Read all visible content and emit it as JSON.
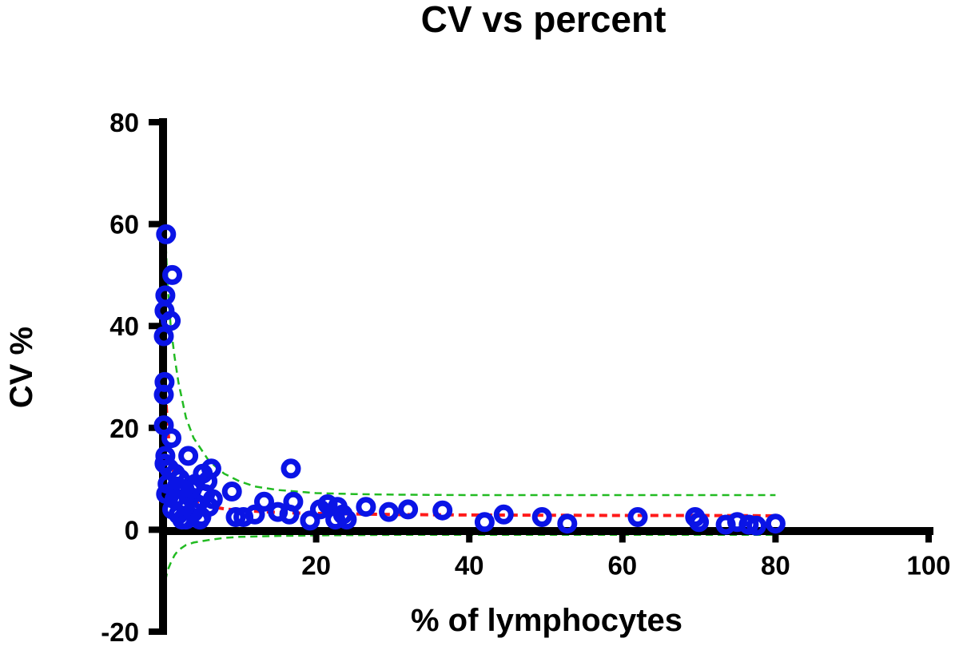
{
  "chart_data": {
    "type": "scatter",
    "title": "CV vs percent",
    "xlabel": "% of lymphocytes",
    "ylabel": "CV %",
    "xlim": [
      0,
      100
    ],
    "ylim": [
      -20,
      80
    ],
    "x_ticks": [
      20,
      40,
      60,
      80,
      100
    ],
    "y_ticks": [
      -20,
      0,
      20,
      40,
      60,
      80
    ],
    "x_tick_labels": [
      "20",
      "40",
      "60",
      "80",
      "100"
    ],
    "y_tick_labels": [
      "-20",
      "0",
      "20",
      "40",
      "60",
      "80"
    ],
    "grid": false,
    "legend": "none",
    "colors": {
      "points": "#0a14e6",
      "fit_line": "#ff1a1a",
      "prediction_band": "#22bb22",
      "axes": "#000000"
    },
    "fit_curve": {
      "name": "fit",
      "style": "dashed red",
      "x": [
        0.3,
        0.6,
        1,
        1.5,
        2,
        3,
        4,
        6,
        8,
        10,
        15,
        20,
        30,
        40,
        50,
        60,
        70,
        80
      ],
      "y": [
        27,
        20,
        14,
        10.5,
        8.5,
        6.5,
        5.5,
        4.6,
        4.1,
        3.8,
        3.4,
        3.2,
        3.0,
        2.9,
        2.85,
        2.8,
        2.8,
        2.75
      ]
    },
    "upper_band": {
      "name": "upper prediction band",
      "style": "dashed green",
      "x": [
        0.3,
        0.6,
        1,
        1.5,
        2,
        3,
        4,
        6,
        8,
        10,
        12,
        15,
        20,
        25,
        30,
        40,
        50,
        60,
        70,
        80
      ],
      "y": [
        58,
        48,
        40,
        34,
        29,
        22,
        18,
        13.5,
        11,
        9.5,
        8.5,
        7.8,
        7.2,
        7.0,
        6.9,
        6.8,
        6.8,
        6.8,
        6.8,
        6.8
      ]
    },
    "lower_band": {
      "name": "lower prediction band",
      "style": "dashed green",
      "x": [
        0.3,
        0.6,
        1,
        1.5,
        2,
        3,
        4,
        6,
        8,
        10,
        15,
        20,
        30,
        40,
        60,
        80
      ],
      "y": [
        -10,
        -8,
        -6.5,
        -5,
        -4,
        -3,
        -2.5,
        -2,
        -1.6,
        -1.4,
        -1.2,
        -1.1,
        -1.0,
        -1.0,
        -1.0,
        -1.0
      ]
    },
    "series": [
      {
        "name": "CV",
        "points": [
          [
            0.4,
            58
          ],
          [
            1.2,
            50
          ],
          [
            0.3,
            46
          ],
          [
            0.2,
            43
          ],
          [
            1.0,
            41
          ],
          [
            0.1,
            38
          ],
          [
            0.2,
            29
          ],
          [
            0.1,
            26.5
          ],
          [
            0.1,
            20.5
          ],
          [
            1.1,
            18
          ],
          [
            0.3,
            14.5
          ],
          [
            0.2,
            13
          ],
          [
            0.8,
            12
          ],
          [
            1.6,
            11
          ],
          [
            2.2,
            10
          ],
          [
            3.3,
            14.5
          ],
          [
            4.2,
            9
          ],
          [
            5.2,
            11
          ],
          [
            6.3,
            12
          ],
          [
            2.8,
            8
          ],
          [
            0.4,
            7
          ],
          [
            1.5,
            6
          ],
          [
            2.5,
            5.5
          ],
          [
            3.5,
            6.5
          ],
          [
            4.5,
            5
          ],
          [
            5.5,
            7
          ],
          [
            6.0,
            4.5
          ],
          [
            2.0,
            3
          ],
          [
            3.0,
            2
          ],
          [
            4.0,
            3.5
          ],
          [
            5.0,
            2.5
          ],
          [
            1.2,
            4
          ],
          [
            0.6,
            9
          ],
          [
            1.8,
            8.5
          ],
          [
            3.8,
            8
          ],
          [
            5.8,
            9.5
          ],
          [
            6.5,
            6
          ],
          [
            2.5,
            2
          ],
          [
            4.8,
            2
          ],
          [
            9,
            7.5
          ],
          [
            9.5,
            2.5
          ],
          [
            10.5,
            2.5
          ],
          [
            12,
            3
          ],
          [
            13.2,
            5.5
          ],
          [
            15,
            3.5
          ],
          [
            16.5,
            3
          ],
          [
            16.7,
            12
          ],
          [
            17,
            5.5
          ],
          [
            19.2,
            1.8
          ],
          [
            20.5,
            4
          ],
          [
            21.5,
            5
          ],
          [
            22.8,
            4.5
          ],
          [
            22.5,
            2
          ],
          [
            23.5,
            3
          ],
          [
            24,
            2
          ],
          [
            26.5,
            4.5
          ],
          [
            29.5,
            3.5
          ],
          [
            32,
            4
          ],
          [
            36.5,
            3.8
          ],
          [
            42,
            1.5
          ],
          [
            44.5,
            3
          ],
          [
            49.5,
            2.5
          ],
          [
            52.8,
            1.2
          ],
          [
            62,
            2.5
          ],
          [
            69.5,
            2.5
          ],
          [
            70,
            1.5
          ],
          [
            73.5,
            1
          ],
          [
            75,
            1.5
          ],
          [
            76.5,
            1
          ],
          [
            77.5,
            0.8
          ],
          [
            80,
            1.2
          ]
        ]
      }
    ]
  }
}
